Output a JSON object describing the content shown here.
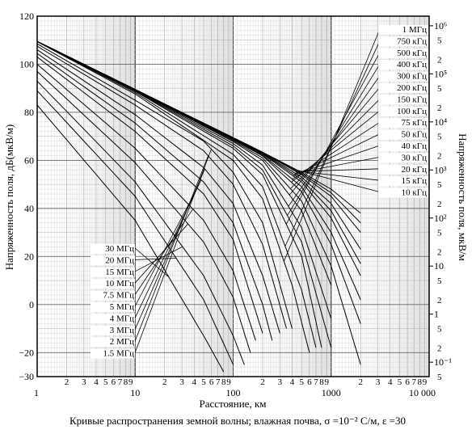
{
  "chart_data": {
    "type": "line",
    "title": "",
    "caption": "Кривые распространения земной волны; влажная почва, σ =10⁻² С/м, ε =30",
    "xlabel": "Расстояние, км",
    "ylabel_left": "Напряженность поля, дБ(мкВ/м)",
    "ylabel_right": "Напряженность поля, мкВ/м",
    "x_scale": "log",
    "xlim": [
      1,
      10000
    ],
    "ylim": [
      -30,
      120
    ],
    "grid": true,
    "x_ticks": [
      "1",
      "10",
      "100",
      "1000",
      "10 000"
    ],
    "x_minor_labels": [
      "2",
      "3",
      "4",
      "5",
      "6",
      "7",
      "8",
      "9"
    ],
    "y_ticks_left": [
      "120",
      "100",
      "80",
      "60",
      "40",
      "20",
      "0",
      "−20",
      "−30"
    ],
    "y_ticks_right": {
      "major": [
        "10⁶",
        "10⁵",
        "10⁴",
        "10³",
        "10²",
        "10",
        "1",
        "10⁻¹"
      ],
      "minor": [
        "5",
        "2"
      ]
    },
    "series": [
      {
        "name": "10 кГц",
        "x": [
          1,
          10,
          100,
          200,
          500,
          1000,
          2000
        ],
        "y": [
          109.5,
          89.5,
          69.5,
          63.4,
          55,
          48,
          38
        ]
      },
      {
        "name": "15 кГц",
        "x": [
          1,
          10,
          100,
          200,
          500,
          1000,
          2000
        ],
        "y": [
          109.5,
          89.5,
          69.4,
          63.3,
          54.5,
          46.5,
          34
        ]
      },
      {
        "name": "20 кГц",
        "x": [
          1,
          10,
          100,
          200,
          500,
          1000,
          2000
        ],
        "y": [
          109.5,
          89.5,
          69.3,
          63.2,
          54,
          45,
          30
        ]
      },
      {
        "name": "30 кГц",
        "x": [
          1,
          10,
          100,
          200,
          500,
          1000,
          2000
        ],
        "y": [
          109.5,
          89.5,
          69.2,
          63,
          53,
          42,
          23
        ]
      },
      {
        "name": "40 кГц",
        "x": [
          1,
          10,
          100,
          200,
          500,
          1000,
          2000
        ],
        "y": [
          109.5,
          89.5,
          69.1,
          62.8,
          52,
          39,
          17
        ]
      },
      {
        "name": "50 кГц",
        "x": [
          1,
          10,
          100,
          200,
          500,
          1000,
          2000
        ],
        "y": [
          109.5,
          89.5,
          69,
          62.6,
          51,
          36,
          12
        ]
      },
      {
        "name": "75 кГц",
        "x": [
          1,
          10,
          100,
          200,
          500,
          1000,
          2000
        ],
        "y": [
          109.5,
          89.5,
          68.8,
          62.2,
          49,
          30,
          2
        ]
      },
      {
        "name": "100 кГц",
        "x": [
          1,
          10,
          100,
          200,
          500,
          1000,
          2000
        ],
        "y": [
          109.5,
          89.5,
          68.6,
          61.8,
          47,
          25,
          -8
        ]
      },
      {
        "name": "150 кГц",
        "x": [
          1,
          10,
          100,
          200,
          500,
          1000,
          2000
        ],
        "y": [
          109.5,
          89.4,
          68.2,
          61,
          43,
          16,
          -25
        ]
      },
      {
        "name": "200 кГц",
        "x": [
          1,
          10,
          100,
          200,
          500,
          1000
        ],
        "y": [
          109.5,
          89.3,
          67.8,
          60,
          39,
          8
        ]
      },
      {
        "name": "300 кГц",
        "x": [
          1,
          10,
          100,
          200,
          500,
          1000
        ],
        "y": [
          109.5,
          89.1,
          67,
          58,
          32,
          -6
        ]
      },
      {
        "name": "400 кГц",
        "x": [
          1,
          10,
          100,
          200,
          500,
          1000
        ],
        "y": [
          109.5,
          88.9,
          66,
          56,
          26,
          -18
        ]
      },
      {
        "name": "500 кГц",
        "x": [
          1,
          10,
          100,
          200,
          500,
          800
        ],
        "y": [
          109.5,
          88.7,
          65,
          54,
          20,
          -18
        ]
      },
      {
        "name": "750 кГц",
        "x": [
          1,
          10,
          100,
          200,
          500,
          700
        ],
        "y": [
          109.5,
          88.2,
          62.5,
          49,
          6,
          -18
        ]
      },
      {
        "name": "1 МГц",
        "x": [
          1,
          10,
          100,
          200,
          400,
          600
        ],
        "y": [
          109.4,
          87.6,
          60,
          44,
          8,
          -20
        ]
      },
      {
        "name": "1.5 МГц",
        "x": [
          1,
          10,
          50,
          100,
          200,
          400
        ],
        "y": [
          108.5,
          85,
          68,
          55,
          34,
          -10
        ]
      },
      {
        "name": "2 МГц",
        "x": [
          1,
          10,
          50,
          100,
          200,
          350
        ],
        "y": [
          107.5,
          83,
          64,
          50,
          25,
          -10
        ]
      },
      {
        "name": "3 МГц",
        "x": [
          1,
          10,
          50,
          100,
          200,
          300
        ],
        "y": [
          106,
          79,
          57,
          42,
          12,
          -12
        ]
      },
      {
        "name": "4 МГц",
        "x": [
          1,
          10,
          50,
          100,
          200,
          250
        ],
        "y": [
          104.5,
          75.5,
          51,
          34,
          0,
          -15
        ]
      },
      {
        "name": "5 МГц",
        "x": [
          1,
          10,
          50,
          100,
          200
        ],
        "y": [
          103,
          72,
          46,
          27,
          -12
        ]
      },
      {
        "name": "7.5 МГц",
        "x": [
          1,
          10,
          50,
          100,
          170
        ],
        "y": [
          100,
          65,
          35,
          14,
          -15
        ]
      },
      {
        "name": "10 МГц",
        "x": [
          1,
          10,
          50,
          100,
          150
        ],
        "y": [
          97,
          59,
          26,
          3,
          -20
        ]
      },
      {
        "name": "15 МГц",
        "x": [
          1,
          10,
          50,
          100,
          130
        ],
        "y": [
          93,
          51,
          12,
          -13,
          -25
        ]
      },
      {
        "name": "20 МГц",
        "x": [
          1,
          10,
          50,
          100
        ],
        "y": [
          89,
          45,
          2,
          -25
        ]
      },
      {
        "name": "30 МГц",
        "x": [
          1,
          10,
          50,
          80
        ],
        "y": [
          83,
          35,
          -13,
          -28
        ]
      }
    ]
  }
}
